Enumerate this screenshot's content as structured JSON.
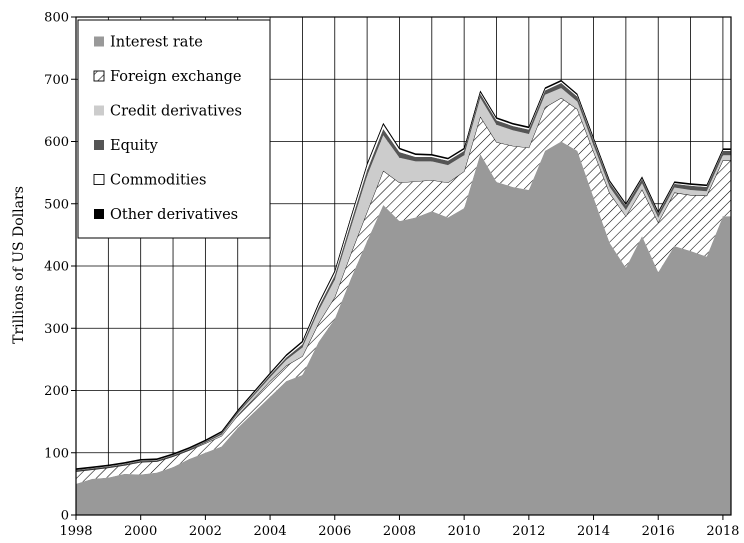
{
  "chart_data": {
    "type": "area",
    "stacked": true,
    "title": "",
    "xlabel": "",
    "ylabel": "Trillions of US Dollars",
    "xlim": [
      1998,
      2018.25
    ],
    "ylim": [
      0,
      800
    ],
    "x_ticks": [
      1998,
      2000,
      2002,
      2004,
      2006,
      2008,
      2010,
      2012,
      2014,
      2016,
      2018
    ],
    "y_ticks": [
      0,
      100,
      200,
      300,
      400,
      500,
      600,
      700,
      800
    ],
    "grid": true,
    "legend_position": "top-left",
    "x": [
      1998.0,
      1998.5,
      1999.0,
      1999.5,
      2000.0,
      2000.5,
      2001.0,
      2001.5,
      2002.0,
      2002.5,
      2003.0,
      2003.5,
      2004.0,
      2004.5,
      2005.0,
      2005.5,
      2006.0,
      2006.5,
      2007.0,
      2007.5,
      2008.0,
      2008.5,
      2009.0,
      2009.5,
      2010.0,
      2010.5,
      2011.0,
      2011.5,
      2012.0,
      2012.5,
      2013.0,
      2013.5,
      2014.0,
      2014.5,
      2015.0,
      2015.5,
      2016.0,
      2016.5,
      2017.0,
      2017.5,
      2018.0
    ],
    "series": [
      {
        "name": "Interest rate",
        "fill": "solid",
        "color": "#999999",
        "values": [
          50,
          58,
          60,
          66,
          65,
          68,
          77,
          90,
          100,
          110,
          140,
          165,
          190,
          215,
          225,
          278,
          315,
          380,
          440,
          498,
          472,
          478,
          488,
          478,
          493,
          580,
          535,
          527,
          522,
          585,
          600,
          585,
          510,
          437,
          397,
          448,
          390,
          432,
          424,
          415,
          480
        ]
      },
      {
        "name": "Foreign exchange",
        "fill": "hatch",
        "color": "#ffffff",
        "values": [
          20,
          15,
          16,
          14,
          20,
          18,
          17,
          14,
          15,
          17,
          20,
          22,
          25,
          25,
          30,
          30,
          35,
          40,
          47,
          55,
          62,
          58,
          50,
          56,
          59,
          60,
          64,
          66,
          68,
          70,
          70,
          67,
          74,
          80,
          83,
          75,
          80,
          86,
          90,
          98,
          90
        ]
      },
      {
        "name": "Credit derivatives",
        "fill": "solid",
        "color": "#cccccc",
        "values": [
          0,
          0,
          0,
          0,
          0,
          0,
          0,
          0,
          1,
          2,
          3,
          5,
          6,
          9,
          14,
          20,
          28,
          42,
          58,
          57,
          40,
          32,
          30,
          28,
          26,
          30,
          28,
          25,
          22,
          20,
          16,
          12,
          10,
          10,
          10,
          10,
          8,
          8,
          8,
          7,
          8
        ]
      },
      {
        "name": "Equity",
        "fill": "solid",
        "color": "#555555",
        "values": [
          2,
          2,
          2,
          2,
          2,
          2,
          2,
          2,
          2,
          3,
          3,
          3,
          4,
          4,
          5,
          6,
          7,
          8,
          9,
          10,
          9,
          7,
          7,
          7,
          7,
          7,
          7,
          7,
          7,
          7,
          8,
          8,
          8,
          7,
          7,
          7,
          6,
          6,
          7,
          7,
          7
        ]
      },
      {
        "name": "Commodities",
        "fill": "solid",
        "color": "#ffffff",
        "values": [
          1,
          1,
          1,
          1,
          1,
          1,
          1,
          1,
          1,
          1,
          1,
          2,
          2,
          3,
          4,
          5,
          6,
          8,
          9,
          8,
          5,
          4,
          3,
          3,
          3,
          3,
          3,
          3,
          3,
          3,
          3,
          3,
          3,
          2,
          2,
          2,
          2,
          2,
          2,
          2,
          2
        ]
      },
      {
        "name": "Other derivatives",
        "fill": "solid",
        "color": "#000000",
        "values": [
          2,
          2,
          2,
          2,
          2,
          2,
          2,
          2,
          2,
          2,
          2,
          2,
          2,
          2,
          2,
          2,
          2,
          2,
          2,
          2,
          2,
          2,
          2,
          2,
          2,
          2,
          2,
          2,
          2,
          2,
          2,
          2,
          2,
          2,
          2,
          2,
          2,
          2,
          2,
          2,
          2
        ]
      }
    ]
  }
}
